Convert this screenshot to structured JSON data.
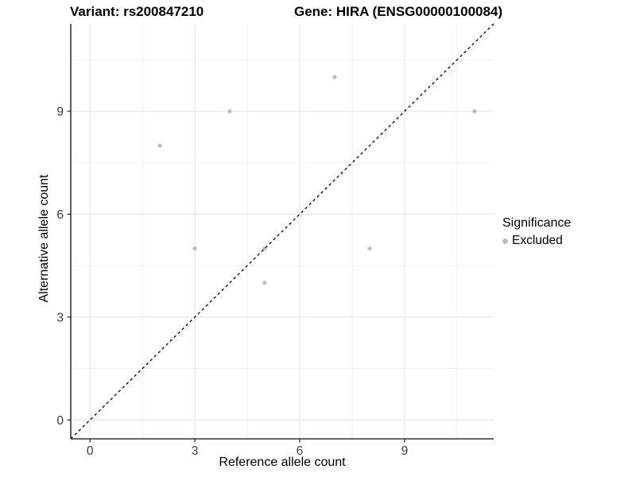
{
  "chart_data": {
    "type": "scatter",
    "title_left": "Variant: rs200847210",
    "title_right": "Gene: HIRA (ENSG00000100084)",
    "xlabel": "Reference allele count",
    "ylabel": "Alternative allele count",
    "xlim": [
      -0.55,
      11.55
    ],
    "ylim": [
      -0.55,
      11.55
    ],
    "xticks": [
      0,
      3,
      6,
      9
    ],
    "yticks": [
      0,
      3,
      6,
      9
    ],
    "minor_breaks": [
      1.5,
      4.5,
      7.5,
      10.5
    ],
    "grid": true,
    "series": [
      {
        "name": "Excluded",
        "color": "#bebebe",
        "points": [
          [
            2,
            8
          ],
          [
            3,
            5
          ],
          [
            4,
            9
          ],
          [
            5,
            4
          ],
          [
            5,
            5
          ],
          [
            7,
            10
          ],
          [
            8,
            5
          ],
          [
            11,
            9
          ]
        ]
      }
    ],
    "reference_line": {
      "type": "identity",
      "slope": 1,
      "intercept": 0,
      "style": "dashed",
      "color": "#000000"
    },
    "legend": {
      "title": "Significance",
      "position": "right",
      "items": [
        {
          "label": "Excluded",
          "color": "#bebebe"
        }
      ]
    },
    "style": {
      "axis_line_color": "#333333",
      "tick_color": "#333333",
      "tick_label_color": "#3d3d3d",
      "grid_major_color": "#e5e5e5",
      "grid_minor_color": "#f0f0f0",
      "background": "#ffffff"
    }
  }
}
